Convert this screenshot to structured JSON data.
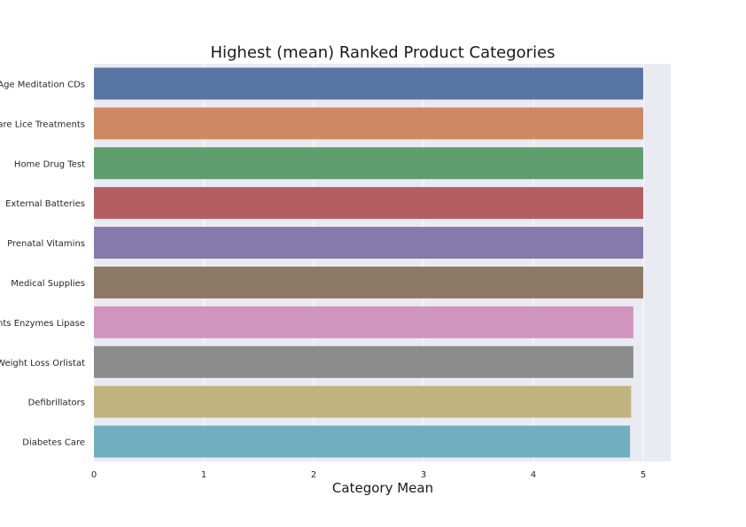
{
  "chart_data": {
    "type": "bar",
    "orientation": "horizontal",
    "title": "Highest (mean) Ranked Product Categories",
    "xlabel": "Category Mean",
    "ylabel": "",
    "xlim": [
      0,
      5.25
    ],
    "xticks": [
      "0",
      "1",
      "2",
      "3",
      "4",
      "5"
    ],
    "grid": true,
    "categories": [
      "New Age Meditation CDs",
      "Hair Care Lice Treatments",
      "Home Drug Test",
      "External Batteries",
      "Prenatal Vitamins",
      "Medical Supplies",
      "Digestive Supplements Enzymes Lipase",
      "Weight Loss Orlistat",
      "Defibrillators",
      "Diabetes Care"
    ],
    "values": [
      5.0,
      5.0,
      5.0,
      5.0,
      5.0,
      5.0,
      4.91,
      4.91,
      4.89,
      4.88
    ],
    "colors": [
      "#5975a4",
      "#cc8963",
      "#5f9e6e",
      "#b55d60",
      "#857aab",
      "#8d7866",
      "#d095bf",
      "#8c8c8c",
      "#c1b37f",
      "#71aec0"
    ]
  }
}
